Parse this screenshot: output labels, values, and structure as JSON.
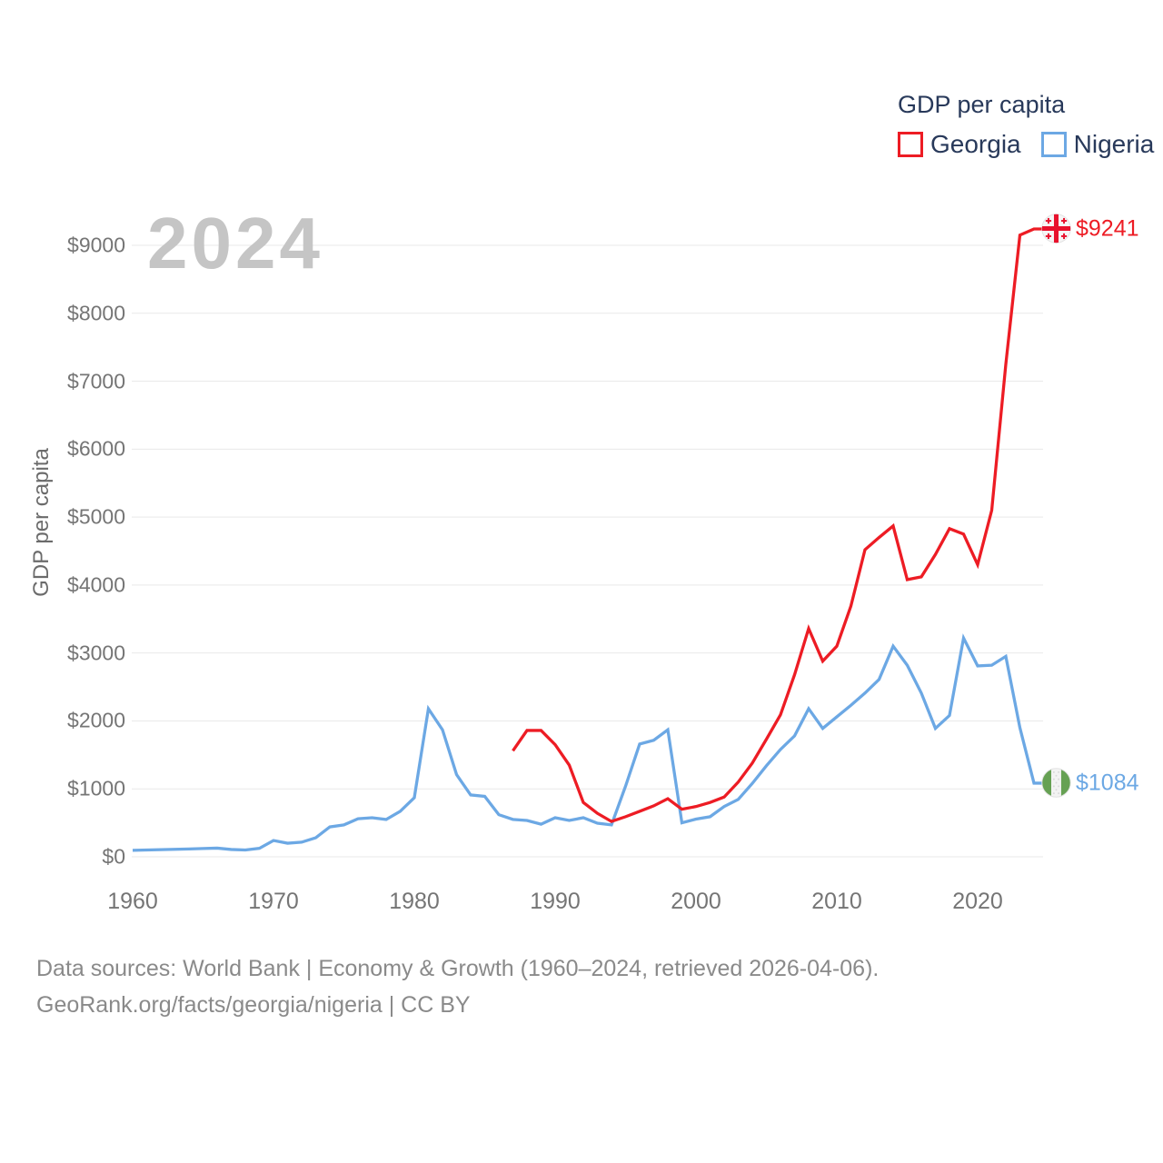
{
  "watermark": "2024",
  "y_axis_title": "GDP per capita",
  "legend": {
    "title": "GDP per capita",
    "items": [
      {
        "label": "Georgia"
      },
      {
        "label": "Nigeria"
      }
    ]
  },
  "end_labels": {
    "georgia": "$9241",
    "nigeria": "$1084"
  },
  "footer": {
    "line1": "Data sources: World Bank | Economy & Growth (1960–2024, retrieved 2026-04-06).",
    "line2": "GeoRank.org/facts/georgia/nigeria | CC BY"
  },
  "colors": {
    "georgia_line": "#ed1c24",
    "nigeria_line": "#6ca8e4",
    "georgia_flag_red": "#e8112d",
    "nigeria_flag_green": "#66a153",
    "grid": "#e9e9e9",
    "axis_text": "#757575",
    "legend_text": "#28395a",
    "watermark_text": "#c5c5c5",
    "footer_text": "#8a8a8a"
  },
  "chart_data": {
    "type": "line",
    "title": "GDP per capita",
    "xlabel": "",
    "ylabel": "GDP per capita",
    "xlim": [
      1960,
      2024
    ],
    "ylim": [
      0,
      9500
    ],
    "grid": true,
    "legend_position": "top-right",
    "y_ticks": [
      {
        "value": 0,
        "label": "$0"
      },
      {
        "value": 1000,
        "label": "$1000"
      },
      {
        "value": 2000,
        "label": "$2000"
      },
      {
        "value": 3000,
        "label": "$3000"
      },
      {
        "value": 4000,
        "label": "$4000"
      },
      {
        "value": 5000,
        "label": "$5000"
      },
      {
        "value": 6000,
        "label": "$6000"
      },
      {
        "value": 7000,
        "label": "$7000"
      },
      {
        "value": 8000,
        "label": "$8000"
      },
      {
        "value": 9000,
        "label": "$9000"
      }
    ],
    "x_ticks": [
      {
        "value": 1960,
        "label": "1960"
      },
      {
        "value": 1970,
        "label": "1970"
      },
      {
        "value": 1980,
        "label": "1980"
      },
      {
        "value": 1990,
        "label": "1990"
      },
      {
        "value": 2000,
        "label": "2000"
      },
      {
        "value": 2010,
        "label": "2010"
      },
      {
        "value": 2020,
        "label": "2020"
      }
    ],
    "series": [
      {
        "name": "Georgia",
        "color": "#ed1c24",
        "start_year": 1987,
        "end_year": 2024,
        "end_value": 9241,
        "end_value_label": "$9241",
        "values": [
          1560,
          1860,
          1860,
          1650,
          1350,
          800,
          640,
          520,
          590,
          670,
          750,
          855,
          700,
          740,
          800,
          880,
          1100,
          1380,
          1730,
          2090,
          2680,
          3360,
          2880,
          3100,
          3690,
          4520,
          4700,
          4870,
          4080,
          4120,
          4450,
          4830,
          4750,
          4300,
          5100,
          7250,
          9150,
          9241
        ]
      },
      {
        "name": "Nigeria",
        "color": "#6ca8e4",
        "start_year": 1960,
        "end_year": 2024,
        "end_value": 1084,
        "end_value_label": "$1084",
        "values": [
          95,
          100,
          105,
          110,
          115,
          122,
          128,
          108,
          100,
          125,
          240,
          200,
          215,
          280,
          440,
          470,
          560,
          575,
          550,
          670,
          870,
          2180,
          1870,
          1210,
          910,
          890,
          620,
          550,
          535,
          480,
          575,
          535,
          575,
          495,
          470,
          1040,
          1660,
          1715,
          1870,
          500,
          555,
          590,
          740,
          845,
          1080,
          1340,
          1580,
          1780,
          2180,
          1890,
          2060,
          2230,
          2410,
          2610,
          3100,
          2820,
          2410,
          1890,
          2080,
          3220,
          2810,
          2820,
          2950,
          1900,
          1084
        ]
      }
    ]
  }
}
